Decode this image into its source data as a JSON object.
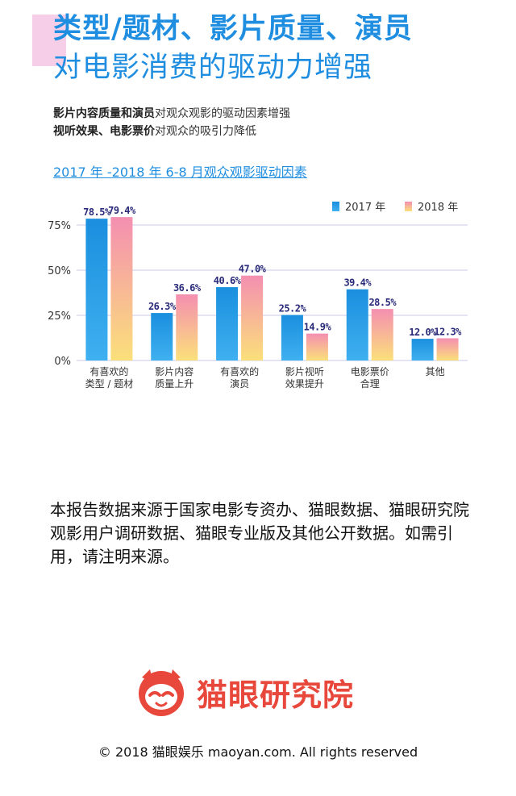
{
  "header": {
    "title_line1": "类型/题材、影片质量、演员",
    "title_line2": "对电影消费的驱动力增强"
  },
  "subtitle": {
    "line1_bold_a": "影片内容质量",
    "line1_mid": "和",
    "line1_bold_b": "演员",
    "line1_rest": "对观众观影的驱动因素增强",
    "line2_bold": "视听效果、电影票价",
    "line2_rest": "对观众的吸引力降低"
  },
  "chart_title": "2017 年 -2018 年 6-8 月观众观影驱动因素",
  "chart_data": {
    "type": "bar",
    "categories": [
      [
        "有喜欢的",
        "类型 / 题材"
      ],
      [
        "影片内容",
        "质量上升"
      ],
      [
        "有喜欢的",
        "演员"
      ],
      [
        "影片视听",
        "效果提升"
      ],
      [
        "电影票价",
        "合理"
      ],
      [
        "其他"
      ]
    ],
    "series": [
      {
        "name": "2017 年",
        "values": [
          78.5,
          26.3,
          40.6,
          25.2,
          39.4,
          12.0
        ],
        "labels": [
          "78.5%",
          "26.3%",
          "40.6%",
          "25.2%",
          "39.4%",
          "12.0%"
        ],
        "color": "#1a8fde"
      },
      {
        "name": "2018 年",
        "values": [
          79.4,
          36.6,
          47.0,
          14.9,
          28.5,
          12.3
        ],
        "labels": [
          "79.4%",
          "36.6%",
          "47.0%",
          "14.9%",
          "28.5%",
          "12.3%"
        ],
        "color": "#f48fb1"
      }
    ],
    "yticks": [
      "0%",
      "25%",
      "50%",
      "75%"
    ],
    "ytick_values": [
      0,
      25,
      50,
      75
    ],
    "ylim": [
      0,
      80
    ],
    "grid": true,
    "legend": "top-right"
  },
  "source_text": "本报告数据来源于国家电影专资办、猫眼数据、猫眼研究院观影用户调研数据、猫眼专业版及其他公开数据。如需引用，请注明来源。",
  "brand": {
    "name": "猫眼研究院",
    "copyright": "© 2018 猫眼娱乐 maoyan.com. All rights reserved",
    "color": "#e8473b"
  }
}
